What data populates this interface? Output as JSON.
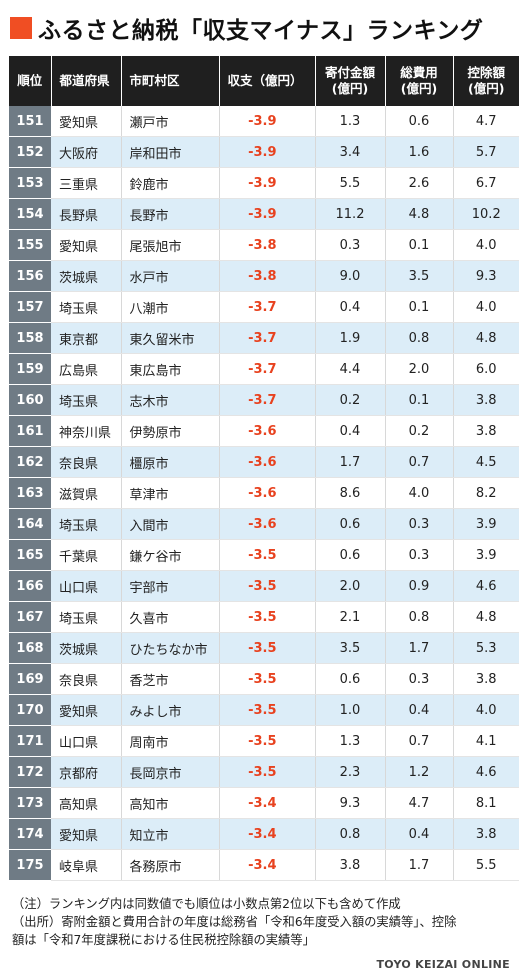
{
  "title": "ふるさと納税「収支マイナス」ランキング",
  "accent_color": "#f04e23",
  "header": {
    "rank": "順位",
    "prefecture": "都道府県",
    "city": "市町村区",
    "balance": "収支（億円）",
    "donations_1": "寄付金額",
    "donations_2": "(億円)",
    "costs_1": "総費用",
    "costs_2": "(億円)",
    "deduction_1": "控除額",
    "deduction_2": "(億円)"
  },
  "rows": [
    {
      "rank": "151",
      "prefecture": "愛知県",
      "city": "瀬戸市",
      "balance": "-3.9",
      "donations": "1.3",
      "costs": "0.6",
      "deduction": "4.7"
    },
    {
      "rank": "152",
      "prefecture": "大阪府",
      "city": "岸和田市",
      "balance": "-3.9",
      "donations": "3.4",
      "costs": "1.6",
      "deduction": "5.7"
    },
    {
      "rank": "153",
      "prefecture": "三重県",
      "city": "鈴鹿市",
      "balance": "-3.9",
      "donations": "5.5",
      "costs": "2.6",
      "deduction": "6.7"
    },
    {
      "rank": "154",
      "prefecture": "長野県",
      "city": "長野市",
      "balance": "-3.9",
      "donations": "11.2",
      "costs": "4.8",
      "deduction": "10.2"
    },
    {
      "rank": "155",
      "prefecture": "愛知県",
      "city": "尾張旭市",
      "balance": "-3.8",
      "donations": "0.3",
      "costs": "0.1",
      "deduction": "4.0"
    },
    {
      "rank": "156",
      "prefecture": "茨城県",
      "city": "水戸市",
      "balance": "-3.8",
      "donations": "9.0",
      "costs": "3.5",
      "deduction": "9.3"
    },
    {
      "rank": "157",
      "prefecture": "埼玉県",
      "city": "八潮市",
      "balance": "-3.7",
      "donations": "0.4",
      "costs": "0.1",
      "deduction": "4.0"
    },
    {
      "rank": "158",
      "prefecture": "東京都",
      "city": "東久留米市",
      "balance": "-3.7",
      "donations": "1.9",
      "costs": "0.8",
      "deduction": "4.8"
    },
    {
      "rank": "159",
      "prefecture": "広島県",
      "city": "東広島市",
      "balance": "-3.7",
      "donations": "4.4",
      "costs": "2.0",
      "deduction": "6.0"
    },
    {
      "rank": "160",
      "prefecture": "埼玉県",
      "city": "志木市",
      "balance": "-3.7",
      "donations": "0.2",
      "costs": "0.1",
      "deduction": "3.8"
    },
    {
      "rank": "161",
      "prefecture": "神奈川県",
      "city": "伊勢原市",
      "balance": "-3.6",
      "donations": "0.4",
      "costs": "0.2",
      "deduction": "3.8"
    },
    {
      "rank": "162",
      "prefecture": "奈良県",
      "city": "橿原市",
      "balance": "-3.6",
      "donations": "1.7",
      "costs": "0.7",
      "deduction": "4.5"
    },
    {
      "rank": "163",
      "prefecture": "滋賀県",
      "city": "草津市",
      "balance": "-3.6",
      "donations": "8.6",
      "costs": "4.0",
      "deduction": "8.2"
    },
    {
      "rank": "164",
      "prefecture": "埼玉県",
      "city": "入間市",
      "balance": "-3.6",
      "donations": "0.6",
      "costs": "0.3",
      "deduction": "3.9"
    },
    {
      "rank": "165",
      "prefecture": "千葉県",
      "city": "鎌ケ谷市",
      "balance": "-3.5",
      "donations": "0.6",
      "costs": "0.3",
      "deduction": "3.9"
    },
    {
      "rank": "166",
      "prefecture": "山口県",
      "city": "宇部市",
      "balance": "-3.5",
      "donations": "2.0",
      "costs": "0.9",
      "deduction": "4.6"
    },
    {
      "rank": "167",
      "prefecture": "埼玉県",
      "city": "久喜市",
      "balance": "-3.5",
      "donations": "2.1",
      "costs": "0.8",
      "deduction": "4.8"
    },
    {
      "rank": "168",
      "prefecture": "茨城県",
      "city": "ひたちなか市",
      "balance": "-3.5",
      "donations": "3.5",
      "costs": "1.7",
      "deduction": "5.3"
    },
    {
      "rank": "169",
      "prefecture": "奈良県",
      "city": "香芝市",
      "balance": "-3.5",
      "donations": "0.6",
      "costs": "0.3",
      "deduction": "3.8"
    },
    {
      "rank": "170",
      "prefecture": "愛知県",
      "city": "みよし市",
      "balance": "-3.5",
      "donations": "1.0",
      "costs": "0.4",
      "deduction": "4.0"
    },
    {
      "rank": "171",
      "prefecture": "山口県",
      "city": "周南市",
      "balance": "-3.5",
      "donations": "1.3",
      "costs": "0.7",
      "deduction": "4.1"
    },
    {
      "rank": "172",
      "prefecture": "京都府",
      "city": "長岡京市",
      "balance": "-3.5",
      "donations": "2.3",
      "costs": "1.2",
      "deduction": "4.6"
    },
    {
      "rank": "173",
      "prefecture": "高知県",
      "city": "高知市",
      "balance": "-3.4",
      "donations": "9.3",
      "costs": "4.7",
      "deduction": "8.1"
    },
    {
      "rank": "174",
      "prefecture": "愛知県",
      "city": "知立市",
      "balance": "-3.4",
      "donations": "0.8",
      "costs": "0.4",
      "deduction": "3.8"
    },
    {
      "rank": "175",
      "prefecture": "岐阜県",
      "city": "各務原市",
      "balance": "-3.4",
      "donations": "3.8",
      "costs": "1.7",
      "deduction": "5.5"
    }
  ],
  "notes": {
    "line1": "（注）ランキング内は同数値でも順位は小数点第2位以下も含めて作成",
    "line2": "（出所）寄附金額と費用合計の年度は総務省「令和6年度受入額の実績等」、控除",
    "line3": "額は「令和7年度課税における住民税控除額の実績等」"
  },
  "credit": "TOYO KEIZAI ONLINE"
}
